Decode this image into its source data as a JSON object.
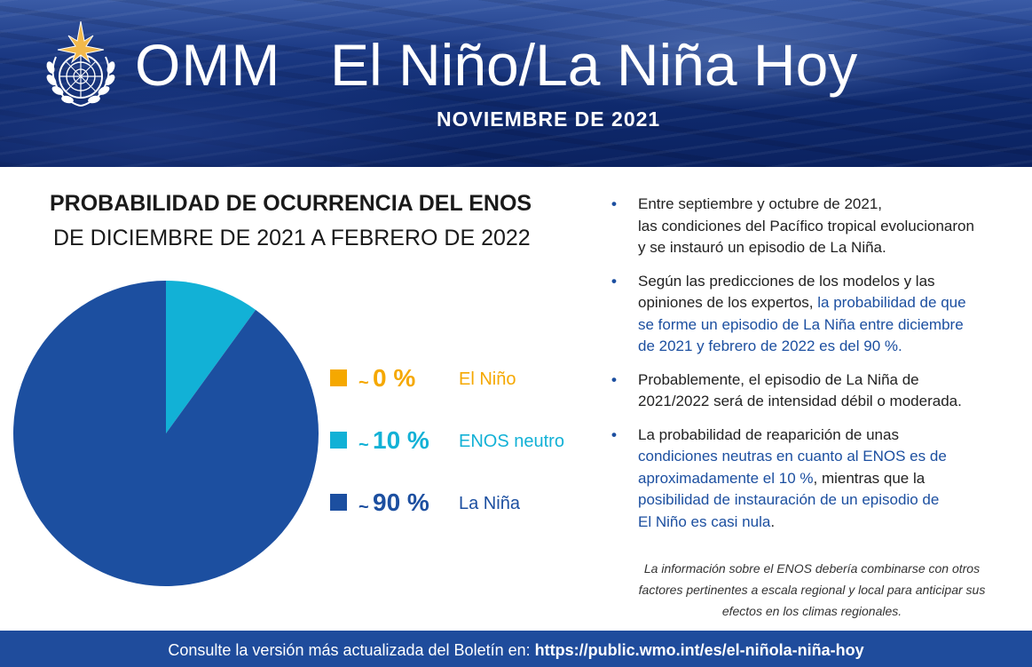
{
  "header": {
    "org": "OMM",
    "title": "El Niño/La Niña Hoy",
    "date": "NOVIEMBRE DE 2021"
  },
  "colors": {
    "el_nino": "#f5a800",
    "neutral": "#12b1d6",
    "la_nina": "#1c4fa0",
    "text_dark": "#1a1a1a",
    "footer_bg": "#1f4c9c"
  },
  "chart_data": {
    "type": "pie",
    "title": "PROBABILIDAD DE OCURRENCIA DEL ENOS",
    "subtitle": "DE DICIEMBRE DE 2021 A FEBRERO DE 2022",
    "legend_position": "right",
    "slices": [
      {
        "label": "El Niño",
        "value": 0,
        "display": "0 %",
        "prefix": "~",
        "color": "#f5a800"
      },
      {
        "label": "ENOS neutro",
        "value": 10,
        "display": "10 %",
        "prefix": "~",
        "color": "#12b1d6"
      },
      {
        "label": "La Niña",
        "value": 90,
        "display": "90 %",
        "prefix": "~",
        "color": "#1c4fa0"
      }
    ]
  },
  "bullets": [
    {
      "parts": [
        {
          "text": "Entre septiembre y octubre de 2021,\nlas condiciones del Pacífico tropical evolucionaron\ny se instauró un episodio de La Niña.",
          "hl": false
        }
      ]
    },
    {
      "parts": [
        {
          "text": "Según las predicciones de los modelos y las\nopiniones de los expertos, ",
          "hl": false
        },
        {
          "text": "la probabilidad de que\nse forme un episodio de La Niña entre diciembre\nde 2021 y febrero de 2022 es del 90 %.",
          "hl": true
        }
      ]
    },
    {
      "parts": [
        {
          "text": "Probablemente, el episodio de La Niña de\n2021/2022 será de intensidad débil o moderada.",
          "hl": false
        }
      ]
    },
    {
      "parts": [
        {
          "text": "La probabilidad de reaparición de unas\n",
          "hl": false
        },
        {
          "text": "condiciones neutras en cuanto al ENOS es de\naproximadamente el 10 %",
          "hl": true
        },
        {
          "text": ", mientras que la\n",
          "hl": false
        },
        {
          "text": "posibilidad de instauración de un episodio de\nEl Niño es casi nula",
          "hl": true
        },
        {
          "text": ".",
          "hl": false
        }
      ]
    }
  ],
  "note": "La información sobre el ENOS debería combinarse con otros\nfactores pertinentes a escala regional y local para anticipar sus\nefectos en los climas regionales.",
  "footer": {
    "prefix": "Consulte la versión más actualizada del Boletín en: ",
    "url": "https://public.wmo.int/es/el-niñola-niña-hoy"
  }
}
